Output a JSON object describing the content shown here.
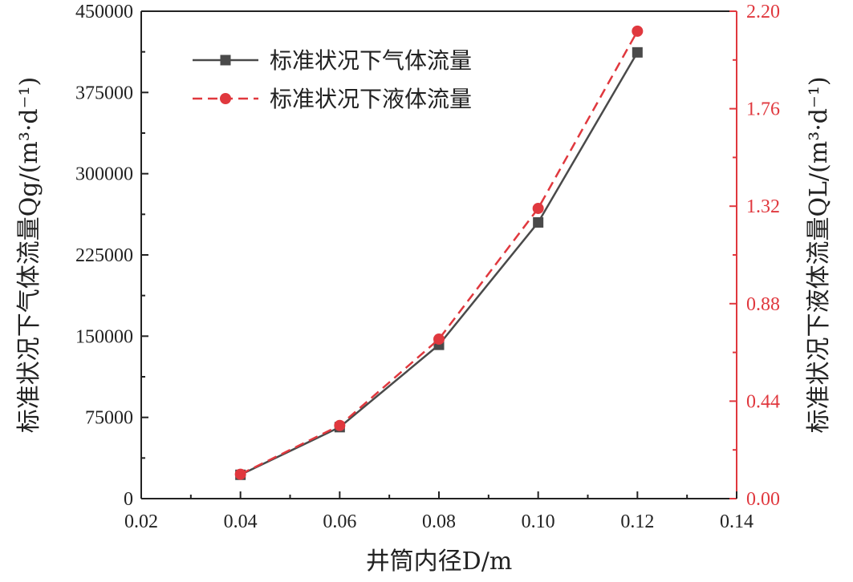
{
  "chart_data": {
    "type": "line",
    "x": [
      0.04,
      0.06,
      0.08,
      0.1,
      0.12
    ],
    "xlabel": "井筒内径D/m",
    "xlim": [
      0.02,
      0.14
    ],
    "x_ticks": [
      "0.02",
      "0.04",
      "0.06",
      "0.08",
      "0.10",
      "0.12",
      "0.14"
    ],
    "y_left": {
      "label": "标准状况下气体流量Qg/(m³·d⁻¹)",
      "lim": [
        0,
        450000
      ],
      "ticks": [
        "0",
        "75000",
        "150000",
        "225000",
        "300000",
        "375000",
        "450000"
      ]
    },
    "y_right": {
      "label": "标准状况下液体流量QL/(m³·d⁻¹)",
      "lim": [
        0,
        2.2
      ],
      "ticks": [
        "0.00",
        "0.44",
        "0.88",
        "1.32",
        "1.76",
        "2.20"
      ]
    },
    "series": [
      {
        "name": "标准状况下气体流量",
        "axis": "left",
        "values": [
          22000,
          66000,
          142000,
          255000,
          412000
        ],
        "color": "#4a4a4a",
        "marker": "square",
        "line": "solid"
      },
      {
        "name": "标准状况下液体流量",
        "axis": "right",
        "values": [
          0.11,
          0.33,
          0.72,
          1.31,
          2.11
        ],
        "color": "#e0383e",
        "marker": "circle",
        "line": "dashed"
      }
    ],
    "legend": "top-left",
    "grid": false
  }
}
